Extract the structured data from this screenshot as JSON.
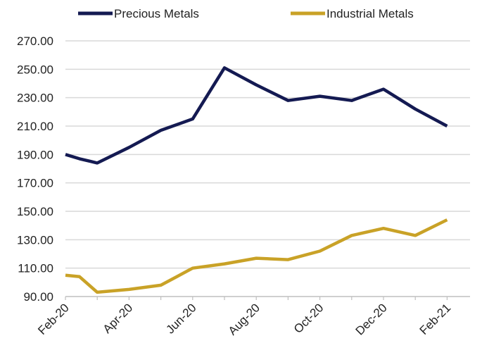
{
  "chart_data": {
    "type": "line",
    "title": "",
    "xlabel": "",
    "ylabel": "",
    "x": [
      "Feb-20",
      "Mar-20",
      "Apr-20",
      "May-20",
      "Jun-20",
      "Jul-20",
      "Aug-20",
      "Sep-20",
      "Oct-20",
      "Nov-20",
      "Dec-20",
      "Jan-21",
      "Feb-21"
    ],
    "x_tick_labels": [
      "Feb-20",
      "Apr-20",
      "Jun-20",
      "Aug-20",
      "Oct-20",
      "Dec-20",
      "Feb-21"
    ],
    "ylim": [
      90,
      270
    ],
    "y_ticks": [
      "90.00",
      "110.00",
      "130.00",
      "150.00",
      "170.00",
      "190.00",
      "210.00",
      "230.00",
      "250.00",
      "270.00"
    ],
    "grid": true,
    "legend_position": "top",
    "series": [
      {
        "name": "Precious Metals",
        "color": "#141a52",
        "points": [
          {
            "x": "Feb-20",
            "y": 190
          },
          {
            "x": "Feb-20",
            "y": 187
          },
          {
            "x": "Mar-20",
            "y": 184
          },
          {
            "x": "Apr-20",
            "y": 195
          },
          {
            "x": "May-20",
            "y": 207
          },
          {
            "x": "Jun-20",
            "y": 215
          },
          {
            "x": "Jul-20",
            "y": 251
          },
          {
            "x": "Aug-20",
            "y": 239
          },
          {
            "x": "Sep-20",
            "y": 228
          },
          {
            "x": "Oct-20",
            "y": 231
          },
          {
            "x": "Nov-20",
            "y": 228
          },
          {
            "x": "Dec-20",
            "y": 236
          },
          {
            "x": "Jan-21",
            "y": 222
          },
          {
            "x": "Feb-21",
            "y": 210
          }
        ]
      },
      {
        "name": "Industrial Metals",
        "color": "#c9a227",
        "points": [
          {
            "x": "Feb-20",
            "y": 105
          },
          {
            "x": "Feb-20",
            "y": 104
          },
          {
            "x": "Mar-20",
            "y": 93
          },
          {
            "x": "Apr-20",
            "y": 95
          },
          {
            "x": "May-20",
            "y": 98
          },
          {
            "x": "Jun-20",
            "y": 110
          },
          {
            "x": "Jul-20",
            "y": 113
          },
          {
            "x": "Aug-20",
            "y": 117
          },
          {
            "x": "Sep-20",
            "y": 116
          },
          {
            "x": "Oct-20",
            "y": 122
          },
          {
            "x": "Nov-20",
            "y": 133
          },
          {
            "x": "Dec-20",
            "y": 138
          },
          {
            "x": "Jan-21",
            "y": 133
          },
          {
            "x": "Feb-21",
            "y": 144
          }
        ]
      }
    ]
  }
}
